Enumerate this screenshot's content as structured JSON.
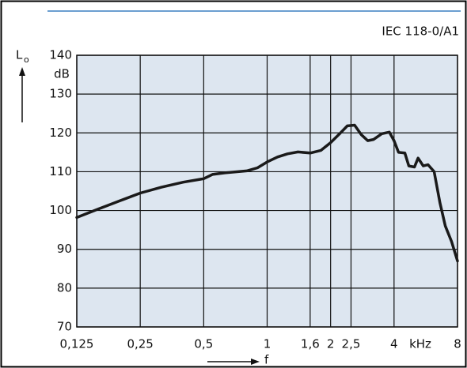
{
  "chart_data": {
    "type": "line",
    "title": "IEC 118-0/A1",
    "ylabel": "L",
    "ylabel_subscript": "o",
    "y_unit": "dB",
    "xlabel": "f",
    "x_unit": "kHz",
    "xscale": "log",
    "grid": true,
    "color": "#1a1a1a",
    "frame_color": "#000000",
    "header_line_color": "#3a7fc1",
    "plot_bg": "#dde6f0",
    "xlim": [
      0.125,
      8
    ],
    "ylim": [
      70,
      140
    ],
    "xticks": [
      {
        "value": 0.125,
        "label": "0,125"
      },
      {
        "value": 0.25,
        "label": "0,25"
      },
      {
        "value": 0.5,
        "label": "0,5"
      },
      1,
      {
        "value": 1.6,
        "label": "1,6"
      },
      2,
      {
        "value": 2.5,
        "label": "2,5"
      },
      4,
      8
    ],
    "yticks": [
      70,
      80,
      90,
      100,
      110,
      120,
      130,
      140
    ],
    "x": [
      0.125,
      0.16,
      0.2,
      0.25,
      0.315,
      0.4,
      0.5,
      0.55,
      0.63,
      0.8,
      0.9,
      1,
      1.12,
      1.25,
      1.4,
      1.6,
      1.8,
      2,
      2.2,
      2.4,
      2.6,
      2.8,
      3,
      3.2,
      3.5,
      3.8,
      4,
      4.2,
      4.5,
      4.7,
      5,
      5.2,
      5.5,
      5.8,
      6.2,
      6.6,
      7,
      7.5,
      8
    ],
    "values": [
      98.2,
      100.5,
      102.5,
      104.5,
      106,
      107.3,
      108.2,
      109.3,
      109.7,
      110.2,
      111,
      112.5,
      113.8,
      114.6,
      115.1,
      114.8,
      115.5,
      117.5,
      119.7,
      121.8,
      122,
      119.5,
      118,
      118.3,
      119.8,
      120.2,
      118,
      115,
      114.8,
      111.5,
      111.2,
      113.5,
      111.5,
      111.8,
      110,
      102,
      96,
      92,
      87
    ]
  }
}
